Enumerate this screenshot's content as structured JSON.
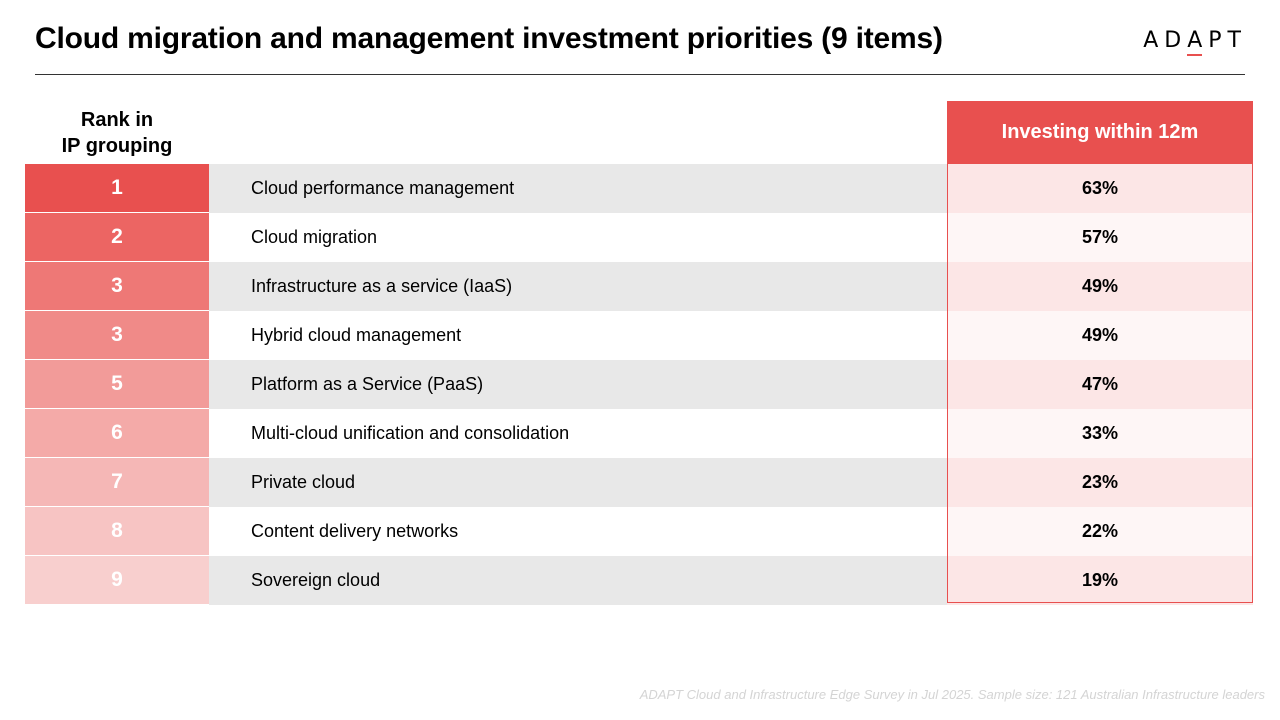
{
  "header": {
    "title": "Cloud migration and management investment priorities (9 items)",
    "logo_parts": [
      "AD",
      "A",
      "PT"
    ]
  },
  "chart_data": {
    "type": "table",
    "title": "Cloud migration and management investment priorities (9 items)",
    "rank_header_line1": "Rank in",
    "rank_header_line2": "IP grouping",
    "value_header": "Investing within 12m",
    "rows": [
      {
        "rank": "1",
        "label": "Cloud performance management",
        "value": "63%"
      },
      {
        "rank": "2",
        "label": "Cloud migration",
        "value": "57%"
      },
      {
        "rank": "3",
        "label": "Infrastructure as a service (IaaS)",
        "value": "49%"
      },
      {
        "rank": "3",
        "label": "Hybrid cloud management",
        "value": "49%"
      },
      {
        "rank": "5",
        "label": "Platform as a Service (PaaS)",
        "value": "47%"
      },
      {
        "rank": "6",
        "label": "Multi-cloud unification and consolidation",
        "value": "33%"
      },
      {
        "rank": "7",
        "label": "Private cloud",
        "value": "23%"
      },
      {
        "rank": "8",
        "label": "Content delivery networks",
        "value": "22%"
      },
      {
        "rank": "9",
        "label": "Sovereign cloud",
        "value": "19%"
      }
    ]
  },
  "colors": {
    "accent": "#e8504f",
    "rank_gradient": [
      "#e8504f",
      "#ec6563",
      "#ee7876",
      "#f08a88",
      "#f29b99",
      "#f4aaa8",
      "#f5b7b6",
      "#f7c4c3",
      "#f8cfce"
    ]
  },
  "footnote": "ADAPT Cloud and Infrastructure Edge Survey in Jul 2025. Sample size: 121 Australian Infrastructure leaders"
}
